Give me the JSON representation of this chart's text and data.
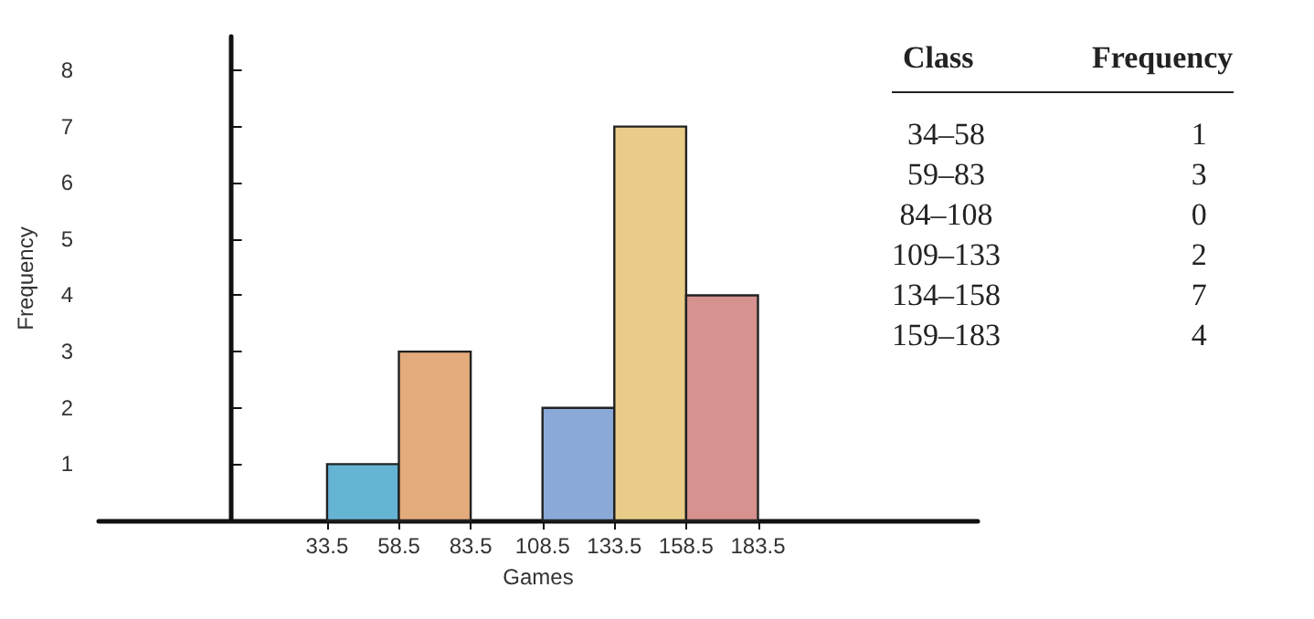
{
  "chart_data": [
    {
      "type": "histogram",
      "xlabel": "Games",
      "ylabel": "Frequency",
      "bins": [
        33.5,
        58.5,
        83.5,
        108.5,
        133.5,
        158.5,
        183.5
      ],
      "values": [
        1,
        3,
        0,
        2,
        7,
        4
      ],
      "colors": [
        "#66b4d4",
        "#e4ab7c",
        "#c0c0c0",
        "#8aa9d8",
        "#e8cc88",
        "#d5928f"
      ],
      "xlim": [
        -46,
        260
      ],
      "ylim": [
        0,
        8.6
      ],
      "xticks": [
        33.5,
        58.5,
        83.5,
        108.5,
        133.5,
        158.5,
        183.5
      ],
      "yticks": [
        1,
        2,
        3,
        4,
        5,
        6,
        7,
        8
      ]
    },
    {
      "type": "other",
      "annotations": [
        "Class",
        "Frequency",
        "34–58",
        "1",
        "59–83",
        "3",
        "84–108",
        "0",
        "109–133",
        "2",
        "134–158",
        "7",
        "159–183",
        "4"
      ]
    }
  ]
}
